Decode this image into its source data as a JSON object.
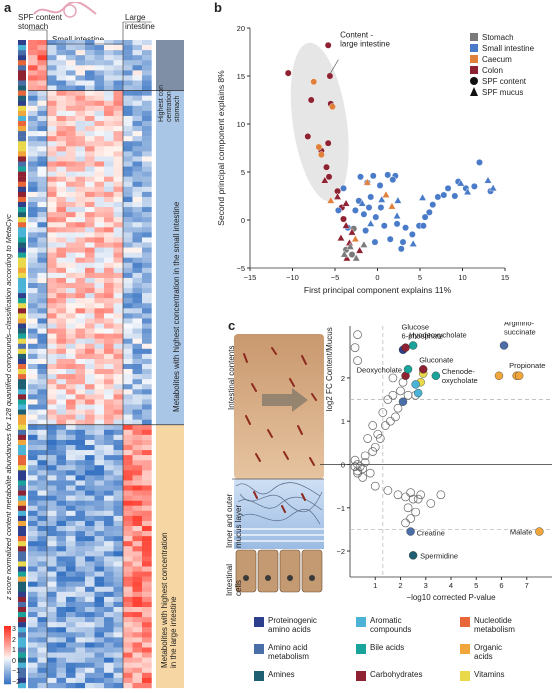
{
  "panel_a": {
    "letter": "a",
    "header_stomach": "SPF content\nstomach",
    "header_small": "Small intestine",
    "header_large": "Large\nintestine",
    "ylabel": "z score normalized content metabolite abundances for 128 quantified compounds–classification according to MetaCyc",
    "band_top": "Highest con\ncentration\nstomach",
    "band_mid": "Metabolites with highest concentration in the small intestine",
    "band_bot": "Metabolites with highest concentration\nin the large intestine",
    "colorbar_ticks": [
      "3",
      "2",
      "1",
      "0",
      "−1",
      "−2"
    ],
    "colors": {
      "band_top": "#7f8fa6",
      "band_mid": "#a9c6e6",
      "band_bot": "#f6d6a2"
    }
  },
  "panel_b": {
    "letter": "b",
    "annotation": "Content -\nlarge intestine",
    "legend": [
      {
        "label": "Stomach",
        "color": "#7a7a7a"
      },
      {
        "label": "Small intestine",
        "color": "#4a7bc8"
      },
      {
        "label": "Caecum",
        "color": "#e0803a"
      },
      {
        "label": "Colon",
        "color": "#8e2232"
      },
      {
        "label": "SPF content",
        "marker": "circle"
      },
      {
        "label": "SPF mucus",
        "marker": "triangle"
      }
    ]
  },
  "chart_data": [
    {
      "type": "scatter",
      "title": "",
      "xlabel": "First principal component explains 11%",
      "ylabel": "Second principal component explains 8%",
      "xlim": [
        -15,
        15
      ],
      "ylim": [
        -5,
        20
      ],
      "xticks": [
        "−15",
        "−10",
        "−5",
        "0",
        "5",
        "10",
        "15"
      ],
      "yticks": [
        "−5",
        "0",
        "5",
        "10",
        "15",
        "20"
      ],
      "series": [
        {
          "name": "Colon",
          "marker": "circle",
          "color": "#8e2232",
          "points": [
            [
              -5.8,
              18.2
            ],
            [
              -10.5,
              15.3
            ],
            [
              -5.6,
              15.0
            ],
            [
              -7.8,
              12.5
            ],
            [
              -5.5,
              12.1
            ],
            [
              -8.2,
              8.7
            ],
            [
              -5.8,
              8.0
            ],
            [
              -6.6,
              7.2
            ],
            [
              -6.0,
              5.5
            ],
            [
              -5.7,
              4.5
            ],
            [
              -4.7,
              3.0
            ],
            [
              -4.2,
              1.3
            ],
            [
              -4.0,
              0.1
            ]
          ]
        },
        {
          "name": "Caecum",
          "marker": "circle",
          "color": "#e0803a",
          "points": [
            [
              -7.5,
              14.4
            ],
            [
              -5.3,
              11.8
            ],
            [
              -6.6,
              6.8
            ],
            [
              -6.9,
              7.6
            ]
          ]
        },
        {
          "name": "Small intestine",
          "marker": "circle",
          "color": "#4a7bc8",
          "points": [
            [
              -2.0,
              4.5
            ],
            [
              -0.5,
              4.6
            ],
            [
              1.2,
              4.7
            ],
            [
              2.1,
              4.6
            ],
            [
              -1.2,
              3.9
            ],
            [
              0.3,
              3.6
            ],
            [
              1.8,
              4.2
            ],
            [
              -0.8,
              2.4
            ],
            [
              -2.2,
              2.0
            ],
            [
              -1.0,
              1.3
            ],
            [
              0.4,
              1.3
            ],
            [
              -2.6,
              1.0
            ],
            [
              -1.6,
              0.6
            ],
            [
              -0.2,
              0.3
            ],
            [
              0.8,
              -0.6
            ],
            [
              -1.4,
              -1.1
            ],
            [
              -0.3,
              -2.3
            ],
            [
              2.3,
              -0.4
            ],
            [
              3.3,
              -0.8
            ],
            [
              4.1,
              -1.5
            ],
            [
              4.9,
              -0.6
            ],
            [
              5.4,
              -0.6
            ],
            [
              5.6,
              0.3
            ],
            [
              6.1,
              0.8
            ],
            [
              6.5,
              1.6
            ],
            [
              7.1,
              2.4
            ],
            [
              7.8,
              2.6
            ],
            [
              8.3,
              3.3
            ],
            [
              9.1,
              2.5
            ],
            [
              10.4,
              3.3
            ],
            [
              11.4,
              3.5
            ],
            [
              12.0,
              6.0
            ],
            [
              13.3,
              3.0
            ],
            [
              9.5,
              4.0
            ],
            [
              3.0,
              -2.3
            ],
            [
              1.5,
              -2.0
            ],
            [
              2.8,
              -3.0
            ],
            [
              -4.0,
              3.3
            ],
            [
              -4.6,
              1.0
            ],
            [
              -3.5,
              -0.8
            ]
          ]
        },
        {
          "name": "Stomach",
          "marker": "circle",
          "color": "#7a7a7a",
          "points": [
            [
              -2.8,
              -0.9
            ],
            [
              -3.7,
              -3.1
            ],
            [
              -3.0,
              -3.6
            ]
          ]
        },
        {
          "name": "Colon",
          "marker": "triangle",
          "color": "#8e2232",
          "points": [
            [
              -6.2,
              4.1
            ],
            [
              -4.7,
              2.4
            ],
            [
              -3.7,
              1.7
            ],
            [
              -3.7,
              -0.6
            ],
            [
              -3.0,
              -1.3
            ],
            [
              -4.3,
              -1.9
            ],
            [
              -3.3,
              -2.4
            ],
            [
              -2.1,
              -3.2
            ],
            [
              -3.6,
              -4.0
            ]
          ]
        },
        {
          "name": "Caecum",
          "marker": "triangle",
          "color": "#e0803a",
          "points": [
            [
              -5.5,
              2.0
            ],
            [
              -1.2,
              3.9
            ],
            [
              1.0,
              2.6
            ],
            [
              1.7,
              1.4
            ],
            [
              -2.6,
              -2.0
            ]
          ]
        },
        {
          "name": "Small intestine",
          "marker": "triangle",
          "color": "#4a7bc8",
          "points": [
            [
              0.5,
              2.1
            ],
            [
              2.4,
              2.0
            ],
            [
              2.3,
              0.4
            ],
            [
              -1.8,
              1.7
            ],
            [
              -0.8,
              -0.4
            ],
            [
              4.2,
              -2.5
            ],
            [
              5.3,
              2.3
            ],
            [
              13.0,
              4.1
            ],
            [
              13.6,
              3.3
            ],
            [
              9.8,
              3.8
            ],
            [
              10.6,
              2.9
            ]
          ]
        },
        {
          "name": "Stomach",
          "marker": "triangle",
          "color": "#7a7a7a",
          "points": [
            [
              -3.2,
              -2.8
            ],
            [
              -3.9,
              -3.6
            ],
            [
              -2.5,
              -4.0
            ],
            [
              -1.6,
              -2.6
            ]
          ]
        }
      ]
    },
    {
      "type": "scatter",
      "title": "",
      "xlabel": "−log10 corrected P-value",
      "ylabel": "log2 FC Content/Mucus",
      "xlim": [
        0,
        8
      ],
      "ylim": [
        -2.6,
        3.2
      ],
      "xticks": [
        "1",
        "2",
        "3",
        "4",
        "5",
        "6",
        "7"
      ],
      "yticks": [
        "−2",
        "−1",
        "0",
        "1",
        "2"
      ],
      "thresholds": {
        "x": 1.3,
        "y": [
          1.5,
          -1.5
        ]
      },
      "labeled_points": [
        {
          "label": "Glucose\n6-phosphate",
          "x": 2.2,
          "y": 2.7,
          "color": "#8e2232"
        },
        {
          "label": "Hyodeoxycholate",
          "x": 2.5,
          "y": 2.75,
          "color": "#1aa39a"
        },
        {
          "label": "Deoxycholate",
          "x": 2.3,
          "y": 2.2,
          "color": "#1aa39a"
        },
        {
          "label": "Gluconate",
          "x": 2.9,
          "y": 2.2,
          "color": "#8e2232"
        },
        {
          "label": "Chenode-\noxycholate",
          "x": 3.4,
          "y": 2.05,
          "color": "#1aa39a"
        },
        {
          "label": "Arginino-\nsuccinate",
          "x": 6.1,
          "y": 2.75,
          "color": "#4a6fa8"
        },
        {
          "label": "Propionate",
          "x": 6.7,
          "y": 2.05,
          "color": "#f0a63a"
        },
        {
          "label": "Malate",
          "x": 7.5,
          "y": -1.55,
          "color": "#f0a63a"
        },
        {
          "label": "Creatine",
          "x": 2.4,
          "y": -1.55,
          "color": "#4a6fa8"
        },
        {
          "label": "Spermidine",
          "x": 2.5,
          "y": -2.1,
          "color": "#1f5f73"
        }
      ],
      "unlabeled_colored": [
        {
          "x": 2.1,
          "y": 2.65,
          "color": "#2c3e8c"
        },
        {
          "x": 2.9,
          "y": 2.1,
          "color": "#e8d84a"
        },
        {
          "x": 2.8,
          "y": 1.9,
          "color": "#e8d84a"
        },
        {
          "x": 2.2,
          "y": 2.05,
          "color": "#8e2232"
        },
        {
          "x": 2.6,
          "y": 1.85,
          "color": "#4ab3d6"
        },
        {
          "x": 2.7,
          "y": 1.65,
          "color": "#4ab3d6"
        },
        {
          "x": 2.1,
          "y": 1.45,
          "color": "#4a6fa8"
        },
        {
          "x": 6.6,
          "y": 2.05,
          "color": "#f0a63a"
        },
        {
          "x": 5.9,
          "y": 2.05,
          "color": "#f0a63a"
        }
      ],
      "unlabeled_open": [
        [
          0.3,
          3.0
        ],
        [
          0.2,
          2.7
        ],
        [
          0.3,
          2.4
        ],
        [
          0.2,
          0.1
        ],
        [
          0.3,
          0.0
        ],
        [
          0.4,
          -0.05
        ],
        [
          0.6,
          0.05
        ],
        [
          0.5,
          -0.1
        ],
        [
          0.8,
          -0.2
        ],
        [
          0.6,
          0.2
        ],
        [
          0.9,
          0.3
        ],
        [
          1.0,
          0.4
        ],
        [
          1.2,
          0.6
        ],
        [
          1.1,
          0.7
        ],
        [
          1.4,
          0.9
        ],
        [
          1.6,
          1.0
        ],
        [
          1.8,
          1.1
        ],
        [
          1.9,
          1.3
        ],
        [
          1.5,
          1.5
        ],
        [
          1.7,
          1.6
        ],
        [
          2.0,
          1.7
        ],
        [
          0.7,
          0.6
        ],
        [
          0.9,
          0.9
        ],
        [
          1.3,
          1.2
        ],
        [
          2.3,
          1.6
        ],
        [
          2.6,
          1.6
        ],
        [
          2.1,
          1.9
        ],
        [
          1.7,
          2.0
        ],
        [
          0.2,
          -0.05
        ],
        [
          0.3,
          -0.15
        ],
        [
          0.5,
          -0.3
        ],
        [
          1.0,
          -0.5
        ],
        [
          1.5,
          -0.6
        ],
        [
          1.9,
          -0.7
        ],
        [
          2.2,
          -0.75
        ],
        [
          2.4,
          -0.65
        ],
        [
          2.5,
          -0.8
        ],
        [
          2.7,
          -0.8
        ],
        [
          2.8,
          -0.7
        ],
        [
          3.2,
          -0.9
        ],
        [
          3.6,
          -0.7
        ],
        [
          2.3,
          -1.0
        ],
        [
          2.6,
          -1.1
        ],
        [
          2.4,
          -1.25
        ],
        [
          2.2,
          -1.35
        ],
        [
          0.3,
          -0.2
        ]
      ]
    }
  ],
  "panel_c": {
    "letter": "c",
    "label_intestinal": "Intestinal contents",
    "label_mucus": "Inner and outer\nmucus layer",
    "label_cells": "Intestinal\ncells",
    "legend": [
      {
        "label": "Proteinogenic\namino acids",
        "color": "#2c3e8c"
      },
      {
        "label": "Aromatic\ncompounds",
        "color": "#4ab3d6"
      },
      {
        "label": "Nucleotide\nmetabolism",
        "color": "#e8663a"
      },
      {
        "label": "Amino acid\nmetabolism",
        "color": "#4a6fa8"
      },
      {
        "label": "Bile acids",
        "color": "#1aa39a"
      },
      {
        "label": "Organic\nacids",
        "color": "#f0a63a"
      },
      {
        "label": "Amines",
        "color": "#1f5f73"
      },
      {
        "label": "Carbohydrates",
        "color": "#8e2232"
      },
      {
        "label": "Vitamins",
        "color": "#e8d84a"
      }
    ]
  }
}
